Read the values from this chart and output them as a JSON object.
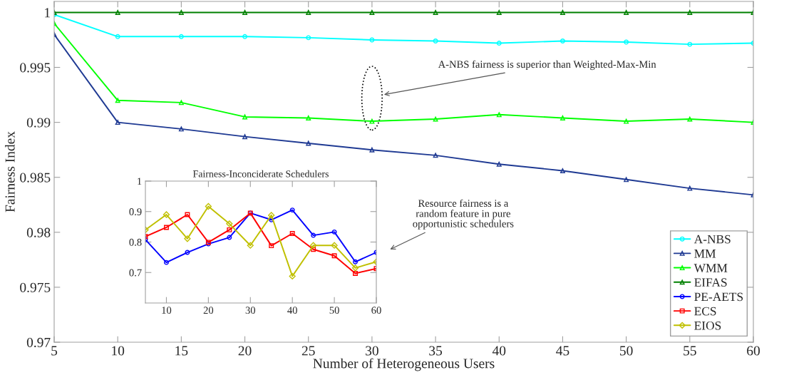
{
  "chart_data": [
    {
      "type": "line",
      "xlabel": "Number of Heterogeneous Users",
      "ylabel": "Fairness Index",
      "x": [
        5,
        10,
        15,
        20,
        25,
        30,
        35,
        40,
        45,
        50,
        55,
        60
      ],
      "xlim": [
        5,
        60
      ],
      "xticks": [
        5,
        10,
        15,
        20,
        25,
        30,
        35,
        40,
        45,
        50,
        55,
        60
      ],
      "ylim": [
        0.97,
        1.001
      ],
      "yticks": [
        0.97,
        0.975,
        0.98,
        0.985,
        0.99,
        0.995,
        1
      ],
      "grid": false,
      "legend": "bottom right",
      "line_style": "solid",
      "series": [
        {
          "name": "A-NBS",
          "color": "#00ffff",
          "marker": "circle",
          "values": [
            0.9998,
            0.9978,
            0.9978,
            0.9978,
            0.9977,
            0.9975,
            0.9974,
            0.9972,
            0.9974,
            0.9973,
            0.9971,
            0.9972
          ]
        },
        {
          "name": "MM",
          "color": "#1f3a93",
          "marker": "triangle",
          "values": [
            0.998,
            0.99,
            0.9894,
            0.9887,
            0.9881,
            0.9875,
            0.987,
            0.9862,
            0.9856,
            0.9848,
            0.984,
            0.9834
          ]
        },
        {
          "name": "WMM",
          "color": "#00ff00",
          "marker": "triangle",
          "values": [
            0.999,
            0.992,
            0.9918,
            0.9905,
            0.9904,
            0.9901,
            0.9903,
            0.9907,
            0.9904,
            0.9901,
            0.9903,
            0.99
          ]
        },
        {
          "name": "EIFAS",
          "color": "#008000",
          "marker": "triangle",
          "values": [
            1,
            1,
            1,
            1,
            1,
            1,
            1,
            1,
            1,
            1,
            1,
            1
          ]
        }
      ],
      "annotations": [
        "A-NBS fairness is superior than Weighted-Max-Min",
        "Resource fairness is a\nrandom feature in pure\nopportunistic schedulers"
      ]
    },
    {
      "type": "line",
      "title": "Fairness-Inconciderate Schedulers",
      "x": [
        5,
        10,
        15,
        20,
        25,
        30,
        35,
        40,
        45,
        50,
        55,
        60
      ],
      "xlim": [
        5,
        60
      ],
      "xticks": [
        10,
        20,
        30,
        40,
        50,
        60
      ],
      "ylim": [
        0.6,
        1
      ],
      "yticks": [
        0.7,
        0.8,
        0.9,
        1
      ],
      "grid": false,
      "legend": "bottom right",
      "line_style": "solid",
      "series": [
        {
          "name": "PE-AETS",
          "color": "#0000ff",
          "marker": "circle",
          "values": [
            0.808,
            0.733,
            0.766,
            0.794,
            0.815,
            0.895,
            0.873,
            0.905,
            0.822,
            0.833,
            0.735,
            0.766
          ]
        },
        {
          "name": "ECS",
          "color": "#ff0000",
          "marker": "square",
          "values": [
            0.818,
            0.848,
            0.89,
            0.799,
            0.84,
            0.895,
            0.788,
            0.828,
            0.776,
            0.755,
            0.697,
            0.713
          ]
        },
        {
          "name": "EIOS",
          "color": "#c0c000",
          "marker": "diamond",
          "values": [
            0.84,
            0.89,
            0.811,
            0.917,
            0.86,
            0.789,
            0.888,
            0.688,
            0.789,
            0.789,
            0.715,
            0.735
          ]
        }
      ]
    }
  ]
}
